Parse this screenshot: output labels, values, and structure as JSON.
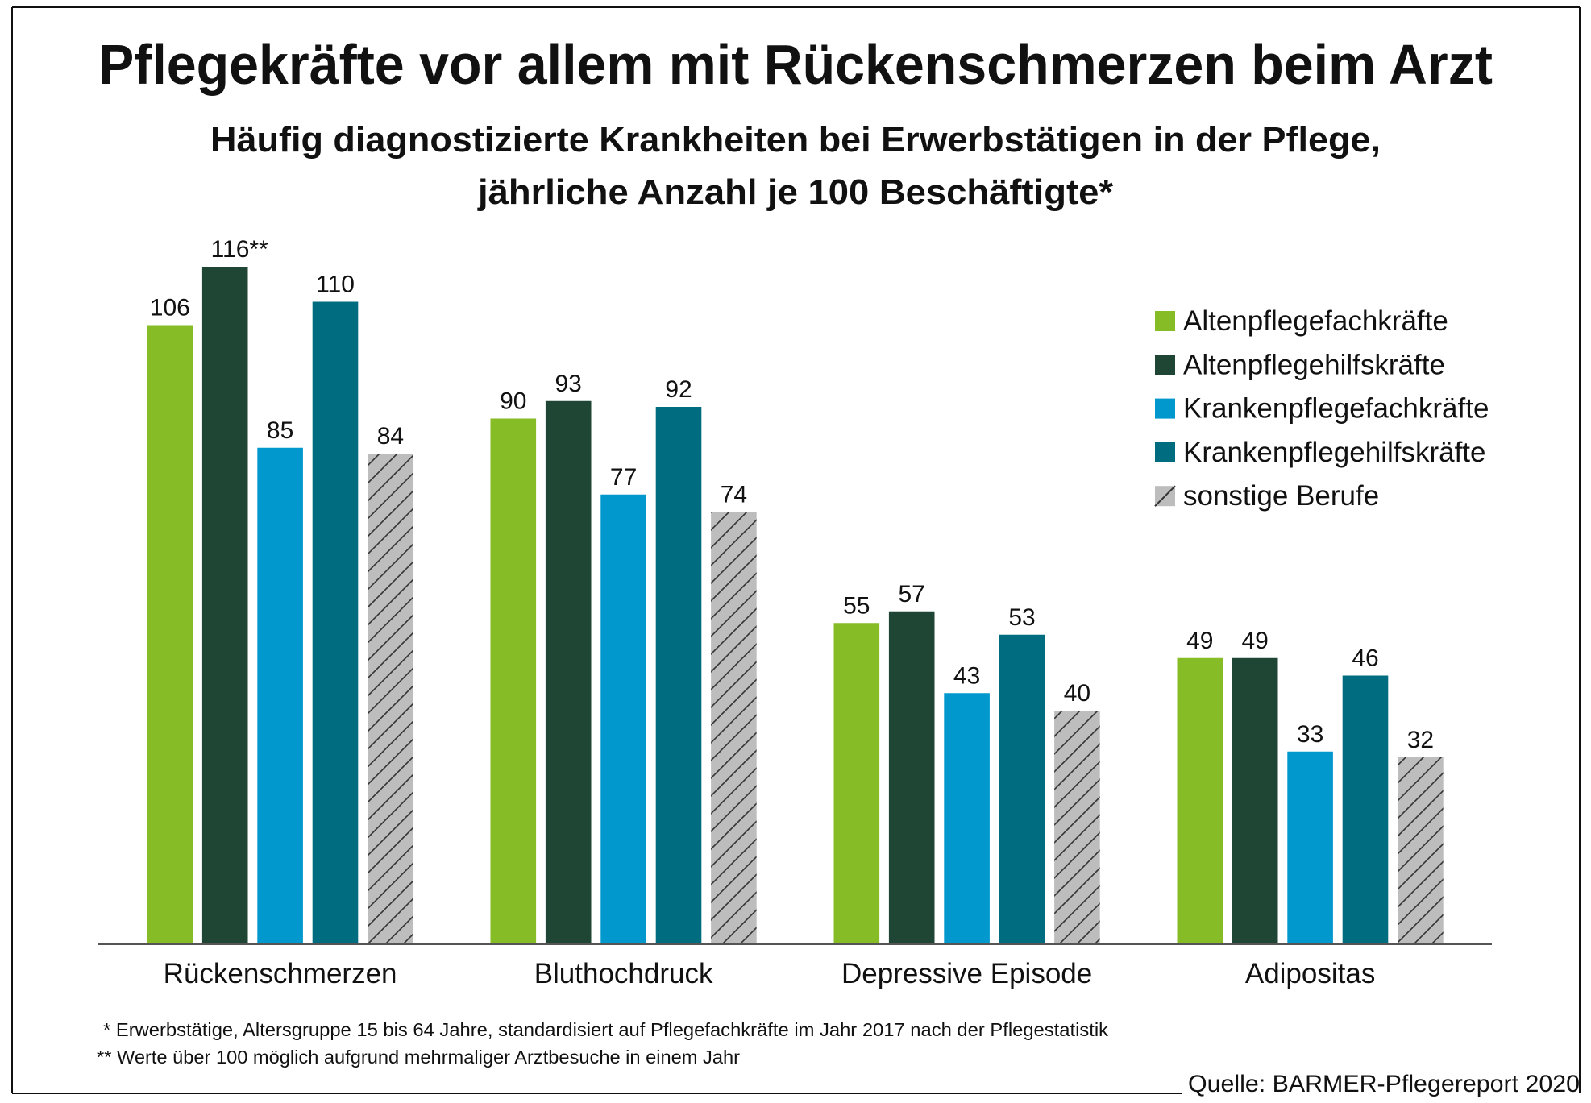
{
  "chart_data": {
    "type": "bar",
    "title": "Pflegekräfte vor allem mit Rückenschmerzen beim Arzt",
    "subtitle": [
      "Häufig diagnostizierte Krankheiten bei Erwerbstätigen in der Pflege,",
      "jährliche Anzahl je 100 Beschäftigte*"
    ],
    "categories": [
      "Rückenschmerzen",
      "Bluthochdruck",
      "Depressive Episode",
      "Adipositas"
    ],
    "series": [
      {
        "name": "Altenpflegefachkräfte",
        "color": "#86bc25",
        "values": [
          106,
          90,
          55,
          49
        ]
      },
      {
        "name": "Altenpflegehilfskräfte",
        "color": "#1f4634",
        "values": [
          116,
          93,
          57,
          49
        ]
      },
      {
        "name": "Krankenpflegefachkräfte",
        "color": "#0098cd",
        "values": [
          85,
          77,
          43,
          33
        ]
      },
      {
        "name": "Krankenpflegehilfskräfte",
        "color": "#006c80",
        "values": [
          110,
          92,
          53,
          46
        ]
      },
      {
        "name": "sonstige Berufe",
        "color": "#bdbdbd",
        "hatched": true,
        "values": [
          84,
          74,
          40,
          32
        ]
      }
    ],
    "data_label_overrides": {
      "1-0": "116**"
    },
    "ylim": [
      0,
      120
    ],
    "grid": false,
    "legend": "top-right",
    "xlabel": "",
    "ylabel": ""
  },
  "footnotes": [
    "* Erwerbstätige, Altersgruppe 15 bis 64 Jahre, standardisiert auf Pflegefachkräfte im Jahr 2017 nach der Pflegestatistik",
    "** Werte über 100 möglich aufgrund mehrmaliger Arztbesuche in einem Jahr"
  ],
  "source": "Quelle: BARMER-Pflegereport 2020"
}
